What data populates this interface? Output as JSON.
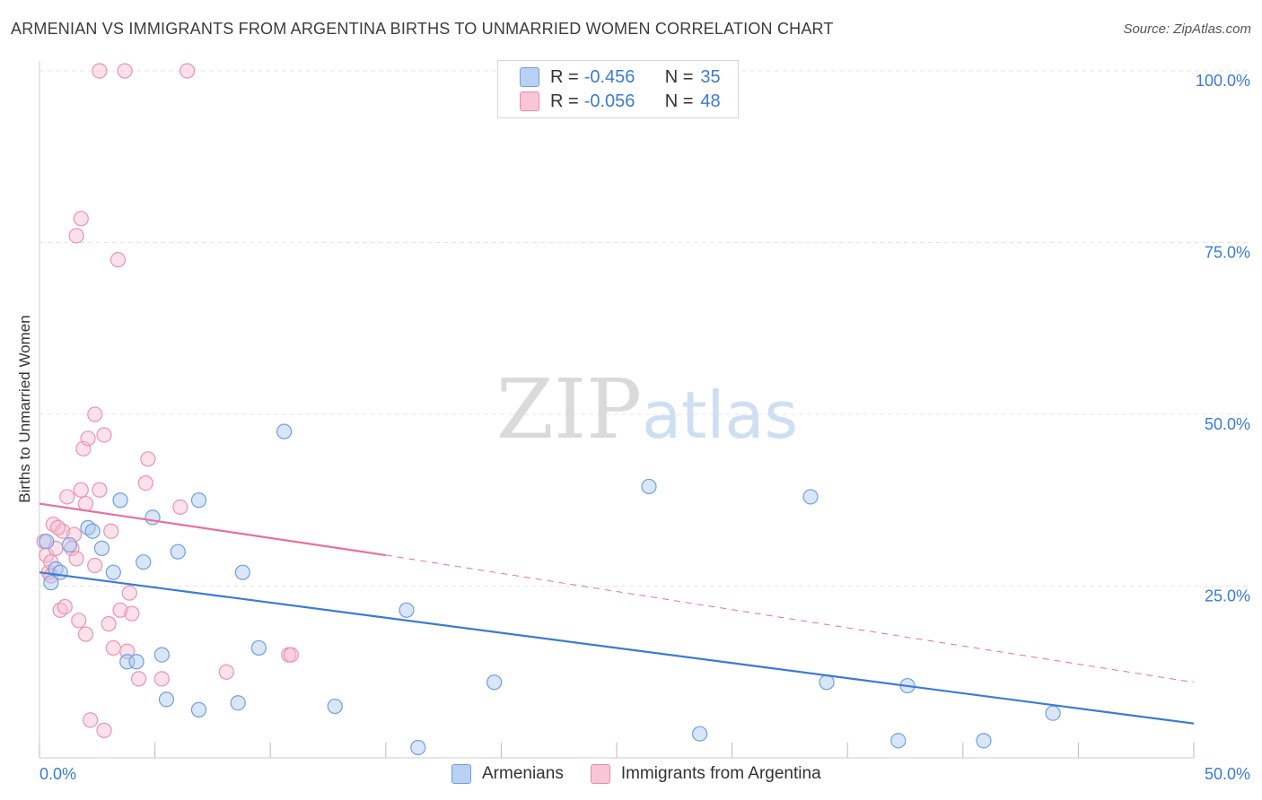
{
  "header": {
    "title": "ARMENIAN VS IMMIGRANTS FROM ARGENTINA BIRTHS TO UNMARRIED WOMEN CORRELATION CHART",
    "source": "Source: ZipAtlas.com"
  },
  "watermark": {
    "zip": "ZIP",
    "atlas": "atlas"
  },
  "legend": {
    "rows": [
      {
        "r_label": "R =",
        "r_value": "-0.456",
        "n_label": "N =",
        "n_value": "35"
      },
      {
        "r_label": "R =",
        "r_value": "-0.056",
        "n_label": "N =",
        "n_value": "48"
      }
    ]
  },
  "bottom_legend": {
    "armenians": "Armenians",
    "argentina": "Immigrants from Argentina"
  },
  "colors": {
    "blue": "#3a7bd5",
    "blue_fill": "#aac8f0",
    "pink": "#e8709a",
    "pink_fill": "#f7bcd0",
    "axis_text": "#3a7bd5"
  },
  "chart_data": {
    "type": "scatter",
    "title": "ARMENIAN VS IMMIGRANTS FROM ARGENTINA BIRTHS TO UNMARRIED WOMEN CORRELATION CHART",
    "xlabel": "",
    "ylabel": "Births to Unmarried Women",
    "xlim": [
      0,
      50
    ],
    "ylim": [
      0,
      100
    ],
    "x_tick_labels": [
      "0.0%",
      "50.0%"
    ],
    "y_tick_labels": [
      "25.0%",
      "50.0%",
      "75.0%",
      "100.0%"
    ],
    "y_ticks": [
      25,
      50,
      75,
      100
    ],
    "series": [
      {
        "name": "Armenians",
        "color": "#3a7bd5",
        "points": [
          [
            0.3,
            31.5
          ],
          [
            0.5,
            25.5
          ],
          [
            0.7,
            27.5
          ],
          [
            0.9,
            27.0
          ],
          [
            1.3,
            31.0
          ],
          [
            2.1,
            33.5
          ],
          [
            2.3,
            33.0
          ],
          [
            2.7,
            30.5
          ],
          [
            3.2,
            27.0
          ],
          [
            3.5,
            37.5
          ],
          [
            3.8,
            14.0
          ],
          [
            4.2,
            14.0
          ],
          [
            4.5,
            28.5
          ],
          [
            4.9,
            35.0
          ],
          [
            5.3,
            15.0
          ],
          [
            5.5,
            8.5
          ],
          [
            6.0,
            30.0
          ],
          [
            6.9,
            7.0
          ],
          [
            6.9,
            37.5
          ],
          [
            8.6,
            8.0
          ],
          [
            8.8,
            27.0
          ],
          [
            9.5,
            16.0
          ],
          [
            10.6,
            47.5
          ],
          [
            12.8,
            7.5
          ],
          [
            15.9,
            21.5
          ],
          [
            16.4,
            1.5
          ],
          [
            19.7,
            11.0
          ],
          [
            26.4,
            39.5
          ],
          [
            28.6,
            3.5
          ],
          [
            33.4,
            38.0
          ],
          [
            34.1,
            11.0
          ],
          [
            37.2,
            2.5
          ],
          [
            37.6,
            10.5
          ],
          [
            40.9,
            2.5
          ],
          [
            43.9,
            6.5
          ]
        ]
      },
      {
        "name": "Immigrants from Argentina",
        "color": "#e8709a",
        "points": [
          [
            0.2,
            31.5
          ],
          [
            0.3,
            29.5
          ],
          [
            0.4,
            27.0
          ],
          [
            0.5,
            28.5
          ],
          [
            0.6,
            34.0
          ],
          [
            0.7,
            30.5
          ],
          [
            0.9,
            21.5
          ],
          [
            1.0,
            33.0
          ],
          [
            1.1,
            22.0
          ],
          [
            1.2,
            38.0
          ],
          [
            1.4,
            30.5
          ],
          [
            1.5,
            32.5
          ],
          [
            1.6,
            29.0
          ],
          [
            1.6,
            76.0
          ],
          [
            1.7,
            20.0
          ],
          [
            1.8,
            39.0
          ],
          [
            1.8,
            78.5
          ],
          [
            1.9,
            45.0
          ],
          [
            2.0,
            18.0
          ],
          [
            2.0,
            37.0
          ],
          [
            2.1,
            46.5
          ],
          [
            2.2,
            5.5
          ],
          [
            2.4,
            28.0
          ],
          [
            2.4,
            50.0
          ],
          [
            2.6,
            39.0
          ],
          [
            2.6,
            100.0
          ],
          [
            2.8,
            4.0
          ],
          [
            2.8,
            47.0
          ],
          [
            3.0,
            19.5
          ],
          [
            3.1,
            33.0
          ],
          [
            3.2,
            16.0
          ],
          [
            3.4,
            72.5
          ],
          [
            3.5,
            21.5
          ],
          [
            3.7,
            100.0
          ],
          [
            3.8,
            15.5
          ],
          [
            3.9,
            24.0
          ],
          [
            4.0,
            21.0
          ],
          [
            4.3,
            11.5
          ],
          [
            4.6,
            40.0
          ],
          [
            4.7,
            43.5
          ],
          [
            5.3,
            11.5
          ],
          [
            6.1,
            36.5
          ],
          [
            6.4,
            100.0
          ],
          [
            8.1,
            12.5
          ],
          [
            10.8,
            15.0
          ],
          [
            10.9,
            15.0
          ],
          [
            0.8,
            33.5
          ],
          [
            0.5,
            26.5
          ]
        ]
      }
    ],
    "trendlines": [
      {
        "series": "Armenians",
        "x": [
          0,
          50
        ],
        "y": [
          27.0,
          5.0
        ],
        "style": "solid"
      },
      {
        "series": "Immigrants from Argentina",
        "x": [
          0,
          15
        ],
        "y": [
          37.0,
          29.5
        ],
        "style": "solid"
      },
      {
        "series": "Immigrants from Argentina",
        "x": [
          15,
          50
        ],
        "y": [
          29.5,
          11.0
        ],
        "style": "dashed"
      }
    ],
    "grid": true
  }
}
